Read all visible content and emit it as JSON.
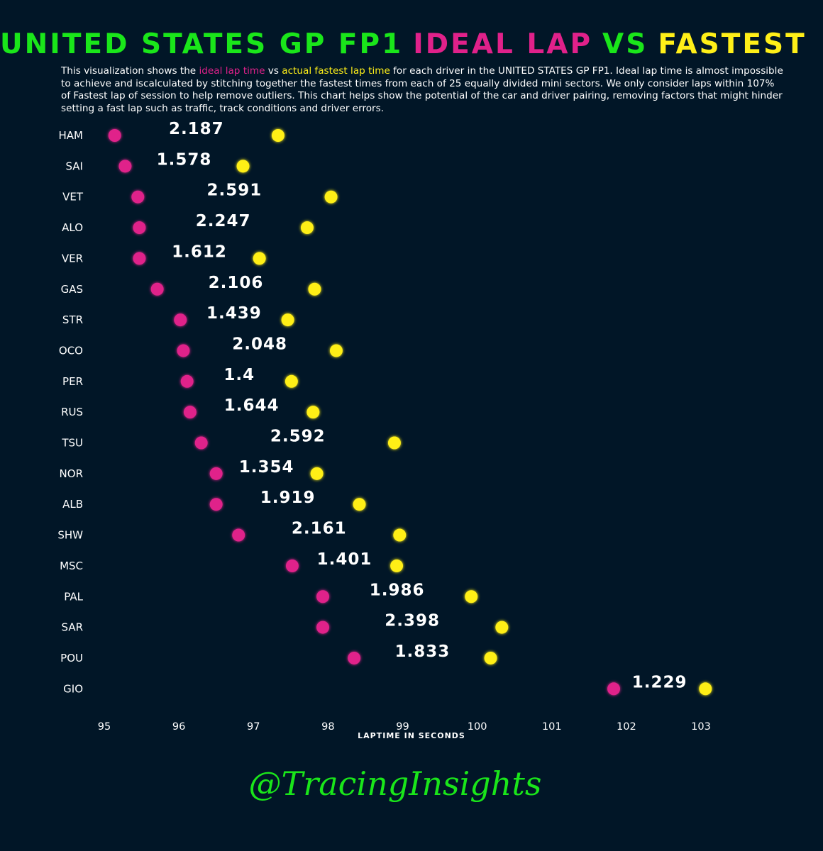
{
  "title": {
    "part1": "UNITED STATES GP FP1",
    "part2": "IDEAL LAP",
    "part3": "VS",
    "part4": "FASTEST"
  },
  "description": {
    "s1": "This visualization shows the ",
    "s2": "ideal lap time",
    "s3": " vs ",
    "s4": "actual fastest lap time",
    "s5": " for each driver in the UNITED STATES GP FP1. Ideal lap time is almost impossible to achieve and iscalculated by stitching together the fastest times from each of 25 equally divided mini sectors. We only consider laps within 107% of Fastest lap of session to help remove outliers. This chart helps show the potential of the car and driver pairing, removing factors that might hinder setting a fast lap such as traffic, track conditions and driver errors."
  },
  "watermark": "@TracingInsights",
  "colors": {
    "background": "#011627",
    "ideal": "#e0218a",
    "fastest": "#ffef18",
    "line": "#1ae61a",
    "text": "#ffffff"
  },
  "chart_data": {
    "type": "dumbbell",
    "xlabel": "LAPTIME IN SECONDS",
    "xlim": [
      94.8,
      103.3
    ],
    "xticks": [
      95,
      96,
      97,
      98,
      99,
      100,
      101,
      102,
      103
    ],
    "grid": false,
    "categories": [
      "HAM",
      "SAI",
      "VET",
      "ALO",
      "VER",
      "GAS",
      "STR",
      "OCO",
      "PER",
      "RUS",
      "TSU",
      "NOR",
      "ALB",
      "SHW",
      "MSC",
      "PAL",
      "SAR",
      "POU",
      "GIO"
    ],
    "series": [
      {
        "name": "ideal lap time",
        "values": [
          95.14,
          95.28,
          95.45,
          95.47,
          95.47,
          95.71,
          96.02,
          96.06,
          96.11,
          96.15,
          96.3,
          96.5,
          96.5,
          96.8,
          97.52,
          97.93,
          97.93,
          98.35,
          101.83
        ]
      },
      {
        "name": "actual fastest lap time",
        "values": [
          97.33,
          96.86,
          98.04,
          97.72,
          97.08,
          97.82,
          97.46,
          98.11,
          97.51,
          97.8,
          98.89,
          97.85,
          98.42,
          98.96,
          98.92,
          99.92,
          100.33,
          100.18,
          103.06
        ]
      }
    ],
    "labels": [
      "2.187",
      "1.578",
      "2.591",
      "2.247",
      "1.612",
      "2.106",
      "1.439",
      "2.048",
      "1.4",
      "1.644",
      "2.592",
      "1.354",
      "1.919",
      "2.161",
      "1.401",
      "1.986",
      "2.398",
      "1.833",
      "1.229"
    ]
  }
}
